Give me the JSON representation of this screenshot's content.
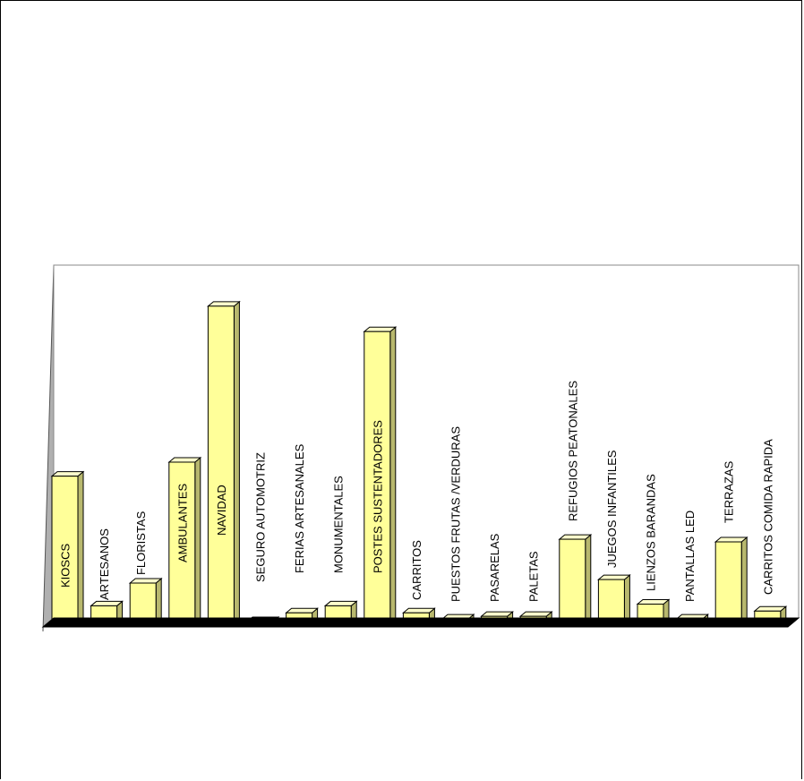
{
  "chart_data": {
    "type": "bar",
    "categories": [
      "KIOSCS",
      "ARTESANOS",
      "FLORISTAS",
      "AMBULANTES",
      "NAVIDAD",
      "SEGURO AUTOMOTRIZ",
      "FERIAS ARTESANALES",
      "MONUMENTALES",
      "POSTES SUSTENTADORES",
      "CARRITOS",
      "PUESTOS FRUTAS /VERDURAS",
      "PASARELAS",
      "PALETAS",
      "REFUGIOS PEATONALES",
      "JUEGOS  INFANTILES",
      "LIENZOS BARANDAS",
      "PANTALLAS LED",
      "TERRAZAS",
      "CARRITOS COMIDA RAPIDA"
    ],
    "values": [
      168,
      20,
      46,
      184,
      362,
      2,
      12,
      20,
      333,
      12,
      5,
      8,
      8,
      96,
      50,
      22,
      5,
      93,
      14
    ],
    "ylim": [
      0,
      370
    ],
    "grid": false,
    "legend": "none",
    "colors": {
      "bar_face": "#ffff99",
      "bar_top": "#ffffcc",
      "bar_side": "#b8b86e",
      "bar_stroke": "#000000",
      "wall": "#ffffff",
      "wall_side": "#b0b0b0",
      "floor": "#000000"
    }
  }
}
